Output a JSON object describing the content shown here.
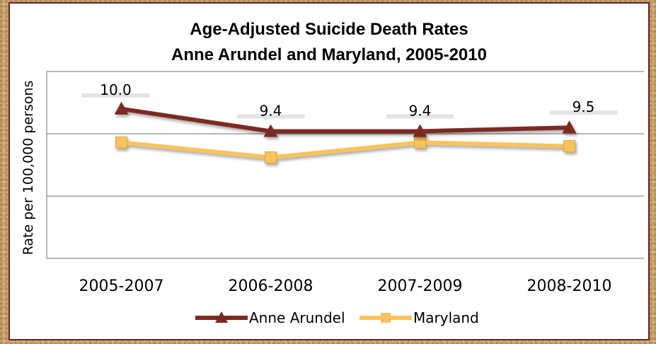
{
  "chart_data": {
    "type": "line",
    "title_line1": "Age-Adjusted Suicide Death Rates",
    "title_line2": "Anne Arundel and Maryland, 2005-2010",
    "ylabel": "Rate per 100,000  persons",
    "xlabel": "",
    "categories": [
      "2005-2007",
      "2006-2008",
      "2007-2009",
      "2008-2010"
    ],
    "ylim": [
      6.0,
      11.0
    ],
    "grid": true,
    "legend_position": "bottom",
    "series": [
      {
        "name": "Anne Arundel",
        "values": [
          10.0,
          9.4,
          9.4,
          9.5
        ],
        "data_labels": [
          "10.0",
          "9.4",
          "9.4",
          "9.5"
        ],
        "color": "#7b2a22",
        "marker": "triangle"
      },
      {
        "name": "Maryland",
        "values": [
          9.1,
          8.7,
          9.1,
          9.0
        ],
        "color": "#f9c35d",
        "marker": "square"
      }
    ]
  }
}
